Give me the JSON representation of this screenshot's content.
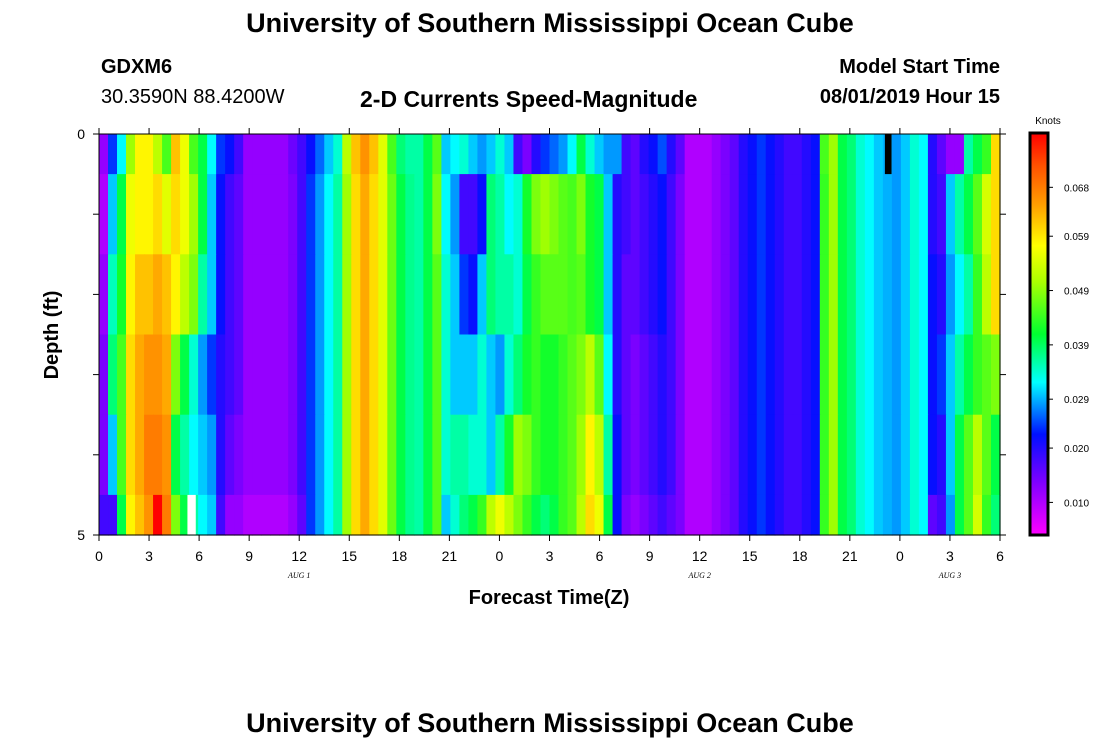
{
  "page": {
    "title_top": "University of Southern Mississippi Ocean Cube",
    "title_bottom": "University of Southern Mississippi Ocean Cube",
    "station": "GDXM6",
    "coords": "30.3590N 88.4200W",
    "plot_title": "2-D Currents Speed-Magnitude",
    "model_label": "Model Start Time",
    "model_time": "08/01/2019 Hour 15"
  },
  "chart_data": {
    "type": "heatmap",
    "title": "2-D Currents Speed-Magnitude",
    "xlabel": "Forecast Time(Z)",
    "ylabel": "Depth (ft)",
    "x_tick_labels": [
      "0",
      "3",
      "6",
      "9",
      "12",
      "15",
      "18",
      "21",
      "0",
      "3",
      "6",
      "9",
      "12",
      "15",
      "18",
      "21",
      "0",
      "3",
      "6"
    ],
    "date_labels": [
      {
        "text": "AUG 1",
        "x_hours": 12
      },
      {
        "text": "AUG 2",
        "x_hours": 36
      },
      {
        "text": "AUG 3",
        "x_hours": 51
      }
    ],
    "y_tick_labels": [
      "0",
      "5"
    ],
    "x_range_hours": [
      0,
      54
    ],
    "y_range_ft": [
      0,
      5
    ],
    "depth_levels": 5,
    "colorbar": {
      "unit": "Knots",
      "tick_labels": [
        "0.068",
        "0.059",
        "0.049",
        "0.039",
        "0.029",
        "0.020",
        "0.010"
      ],
      "range": [
        0.004,
        0.078
      ]
    },
    "column_speeds": [
      [
        0.012,
        0.024,
        0.032,
        0.05,
        0.058,
        0.058,
        0.052,
        0.045,
        0.062,
        0.056,
        0.045,
        0.04,
        0.032,
        0.024,
        0.022,
        0.018,
        0.012,
        0.012,
        0.012,
        0.012,
        0.012,
        0.015,
        0.018,
        0.022,
        0.026,
        0.03,
        0.034,
        0.052,
        0.062,
        0.066,
        0.062,
        0.055,
        0.045,
        0.038,
        0.036,
        0.036,
        0.04,
        0.046,
        0.03,
        0.032,
        0.034,
        0.03,
        0.028,
        0.03,
        0.034,
        0.03,
        0.018,
        0.014,
        0.02,
        0.024,
        0.026,
        0.028,
        0.032,
        0.04,
        0.034,
        0.03,
        0.028,
        0.028,
        0.018,
        0.016,
        0.02,
        0.022,
        0.025,
        0.02,
        0.016,
        0.01,
        0.01,
        0.01,
        0.012,
        0.014,
        0.016,
        0.02,
        0.022,
        0.024,
        0.022,
        0.02,
        0.018,
        0.018,
        0.02,
        0.022,
        0.045,
        0.05,
        0.04,
        0.038,
        0.034,
        0.032,
        0.03,
        0.029,
        0.028,
        0.03,
        0.034,
        0.032,
        0.02,
        0.016,
        0.012,
        0.012,
        0.036,
        0.04,
        0.044,
        0.06
      ],
      [
        0.01,
        0.03,
        0.04,
        0.056,
        0.058,
        0.058,
        0.06,
        0.055,
        0.06,
        0.056,
        0.05,
        0.04,
        0.03,
        0.022,
        0.018,
        0.016,
        0.012,
        0.012,
        0.012,
        0.012,
        0.012,
        0.014,
        0.018,
        0.024,
        0.028,
        0.032,
        0.036,
        0.05,
        0.06,
        0.064,
        0.06,
        0.055,
        0.047,
        0.04,
        0.037,
        0.036,
        0.04,
        0.048,
        0.032,
        0.028,
        0.018,
        0.018,
        0.022,
        0.038,
        0.036,
        0.032,
        0.034,
        0.042,
        0.048,
        0.05,
        0.048,
        0.046,
        0.045,
        0.048,
        0.042,
        0.04,
        0.03,
        0.02,
        0.018,
        0.016,
        0.018,
        0.02,
        0.022,
        0.018,
        0.014,
        0.01,
        0.01,
        0.01,
        0.012,
        0.014,
        0.016,
        0.02,
        0.022,
        0.024,
        0.022,
        0.02,
        0.018,
        0.018,
        0.02,
        0.022,
        0.044,
        0.05,
        0.04,
        0.038,
        0.034,
        0.032,
        0.03,
        0.029,
        0.028,
        0.03,
        0.034,
        0.032,
        0.02,
        0.018,
        0.03,
        0.036,
        0.04,
        0.046,
        0.054,
        0.06
      ],
      [
        0.012,
        0.035,
        0.042,
        0.058,
        0.062,
        0.062,
        0.064,
        0.062,
        0.058,
        0.052,
        0.048,
        0.036,
        0.03,
        0.022,
        0.018,
        0.016,
        0.012,
        0.012,
        0.012,
        0.012,
        0.012,
        0.014,
        0.018,
        0.024,
        0.028,
        0.032,
        0.036,
        0.05,
        0.06,
        0.064,
        0.06,
        0.055,
        0.047,
        0.04,
        0.037,
        0.036,
        0.04,
        0.046,
        0.034,
        0.03,
        0.024,
        0.022,
        0.03,
        0.038,
        0.036,
        0.036,
        0.034,
        0.04,
        0.044,
        0.046,
        0.046,
        0.046,
        0.045,
        0.046,
        0.042,
        0.04,
        0.03,
        0.02,
        0.016,
        0.016,
        0.018,
        0.02,
        0.022,
        0.018,
        0.014,
        0.01,
        0.01,
        0.01,
        0.012,
        0.014,
        0.016,
        0.02,
        0.022,
        0.024,
        0.022,
        0.02,
        0.018,
        0.018,
        0.02,
        0.022,
        0.044,
        0.05,
        0.04,
        0.038,
        0.034,
        0.032,
        0.03,
        0.029,
        0.028,
        0.03,
        0.034,
        0.032,
        0.022,
        0.02,
        0.028,
        0.032,
        0.036,
        0.044,
        0.052,
        0.06
      ],
      [
        0.014,
        0.038,
        0.045,
        0.06,
        0.064,
        0.066,
        0.066,
        0.064,
        0.048,
        0.04,
        0.034,
        0.028,
        0.024,
        0.02,
        0.018,
        0.016,
        0.012,
        0.012,
        0.012,
        0.012,
        0.012,
        0.014,
        0.018,
        0.024,
        0.028,
        0.032,
        0.036,
        0.05,
        0.06,
        0.064,
        0.06,
        0.055,
        0.047,
        0.04,
        0.037,
        0.036,
        0.04,
        0.046,
        0.034,
        0.03,
        0.03,
        0.03,
        0.034,
        0.03,
        0.028,
        0.034,
        0.038,
        0.042,
        0.044,
        0.042,
        0.042,
        0.044,
        0.046,
        0.048,
        0.052,
        0.046,
        0.032,
        0.02,
        0.016,
        0.014,
        0.016,
        0.018,
        0.02,
        0.018,
        0.014,
        0.01,
        0.01,
        0.01,
        0.012,
        0.014,
        0.016,
        0.02,
        0.022,
        0.024,
        0.022,
        0.02,
        0.018,
        0.018,
        0.02,
        0.022,
        0.044,
        0.05,
        0.04,
        0.038,
        0.034,
        0.032,
        0.03,
        0.029,
        0.028,
        0.03,
        0.034,
        0.032,
        0.022,
        0.024,
        0.03,
        0.036,
        0.04,
        0.044,
        0.046,
        0.048
      ],
      [
        0.014,
        0.03,
        0.045,
        0.06,
        0.064,
        0.068,
        0.068,
        0.066,
        0.04,
        0.036,
        0.032,
        0.03,
        0.028,
        0.02,
        0.016,
        0.014,
        0.012,
        0.012,
        0.012,
        0.012,
        0.012,
        0.014,
        0.018,
        0.024,
        0.028,
        0.032,
        0.036,
        0.05,
        0.06,
        0.064,
        0.06,
        0.055,
        0.047,
        0.04,
        0.037,
        0.036,
        0.04,
        0.046,
        0.034,
        0.036,
        0.036,
        0.034,
        0.034,
        0.03,
        0.036,
        0.042,
        0.05,
        0.048,
        0.044,
        0.042,
        0.042,
        0.044,
        0.046,
        0.05,
        0.058,
        0.052,
        0.036,
        0.022,
        0.016,
        0.014,
        0.016,
        0.018,
        0.02,
        0.018,
        0.014,
        0.01,
        0.01,
        0.01,
        0.012,
        0.014,
        0.016,
        0.02,
        0.022,
        0.024,
        0.022,
        0.02,
        0.018,
        0.018,
        0.02,
        0.022,
        0.044,
        0.05,
        0.04,
        0.038,
        0.034,
        0.032,
        0.03,
        0.029,
        0.028,
        0.03,
        0.034,
        0.032,
        0.022,
        0.02,
        0.03,
        0.04,
        0.046,
        0.052,
        0.046,
        0.04
      ],
      [
        0.018,
        0.018,
        0.04,
        0.058,
        0.062,
        0.066,
        0.078,
        0.068,
        0.048,
        0.04,
        0.036,
        0.032,
        0.03,
        0.018,
        0.012,
        0.012,
        0.01,
        0.01,
        0.01,
        0.01,
        0.01,
        0.012,
        0.016,
        0.024,
        0.028,
        0.032,
        0.036,
        0.05,
        0.06,
        0.064,
        0.06,
        0.055,
        0.047,
        0.04,
        0.037,
        0.036,
        0.04,
        0.046,
        0.03,
        0.034,
        0.038,
        0.04,
        0.044,
        0.052,
        0.056,
        0.052,
        0.048,
        0.044,
        0.04,
        0.038,
        0.04,
        0.044,
        0.046,
        0.052,
        0.06,
        0.056,
        0.04,
        0.022,
        0.014,
        0.012,
        0.014,
        0.016,
        0.018,
        0.016,
        0.014,
        0.01,
        0.01,
        0.01,
        0.012,
        0.014,
        0.016,
        0.02,
        0.022,
        0.024,
        0.022,
        0.02,
        0.018,
        0.018,
        0.02,
        0.022,
        0.044,
        0.05,
        0.04,
        0.038,
        0.034,
        0.032,
        0.03,
        0.029,
        0.028,
        0.03,
        0.034,
        0.032,
        0.016,
        0.018,
        0.028,
        0.04,
        0.046,
        0.054,
        0.044,
        0.038
      ]
    ],
    "special_marks": [
      {
        "color": "#000000",
        "x_hours": 47.1,
        "x_end_hours": 47.5,
        "y_ft": 0,
        "y_end_ft": 0.5
      },
      {
        "color": "#ffffff",
        "x_hours": 5.3,
        "x_end_hours": 5.8,
        "y_ft": 4.5,
        "y_end_ft": 5
      }
    ]
  }
}
